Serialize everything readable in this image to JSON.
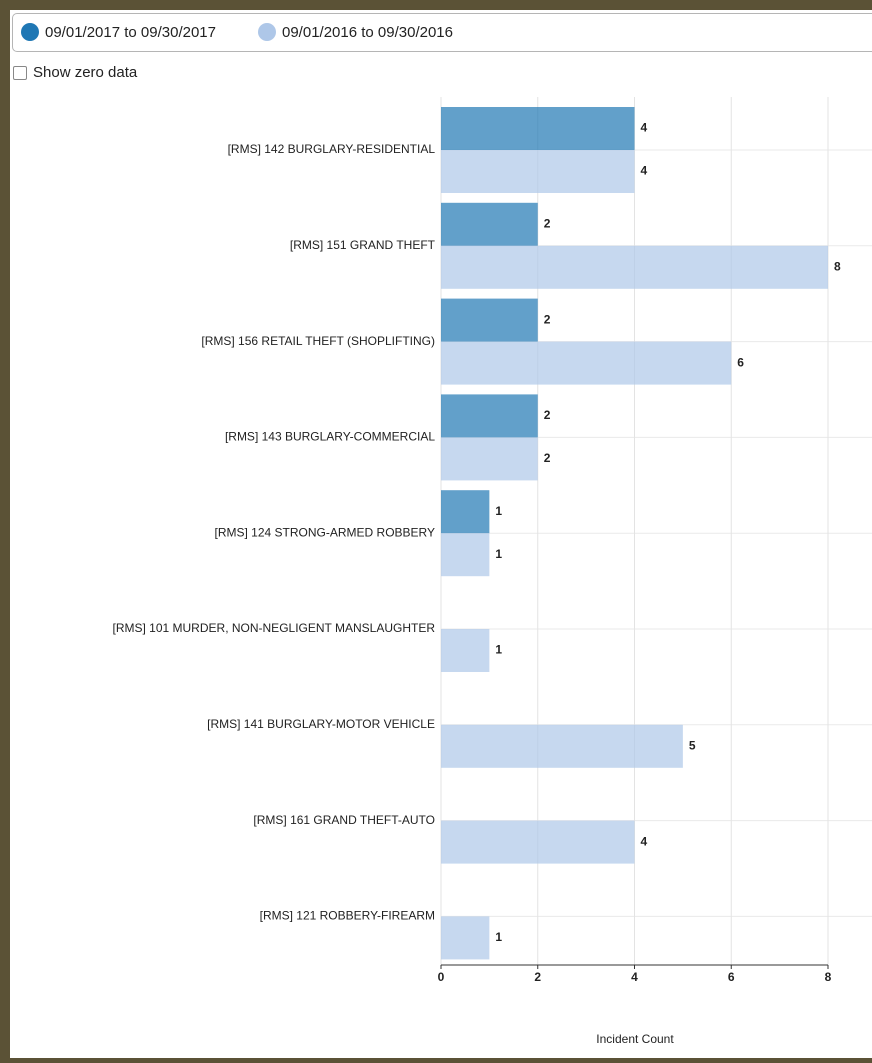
{
  "controls": {
    "show_zero_data": "Show zero data"
  },
  "chart_data": {
    "type": "hbar",
    "categories": [
      "[RMS] 142 BURGLARY-RESIDENTIAL",
      "[RMS] 151 GRAND THEFT",
      "[RMS] 156 RETAIL THEFT (SHOPLIFTING)",
      "[RMS] 143 BURGLARY-COMMERCIAL",
      "[RMS] 124 STRONG-ARMED ROBBERY",
      "[RMS] 101 MURDER, NON-NEGLIGENT MANSLAUGHTER",
      "[RMS] 141 BURGLARY-MOTOR VEHICLE",
      "[RMS] 161 GRAND THEFT-AUTO",
      "[RMS] 121 ROBBERY-FIREARM"
    ],
    "series": [
      {
        "name": "09/01/2017 to 09/30/2017",
        "color": "#1f77b4",
        "values": [
          4,
          2,
          2,
          2,
          1,
          null,
          null,
          null,
          null
        ]
      },
      {
        "name": "09/01/2016 to 09/30/2016",
        "color": "#aec7e8",
        "values": [
          4,
          8,
          6,
          2,
          1,
          1,
          5,
          4,
          1
        ]
      }
    ],
    "x_label": "Incident Count",
    "xlim": [
      0,
      8
    ],
    "xticks": [
      0,
      2,
      4,
      6,
      8
    ],
    "grid": true
  }
}
